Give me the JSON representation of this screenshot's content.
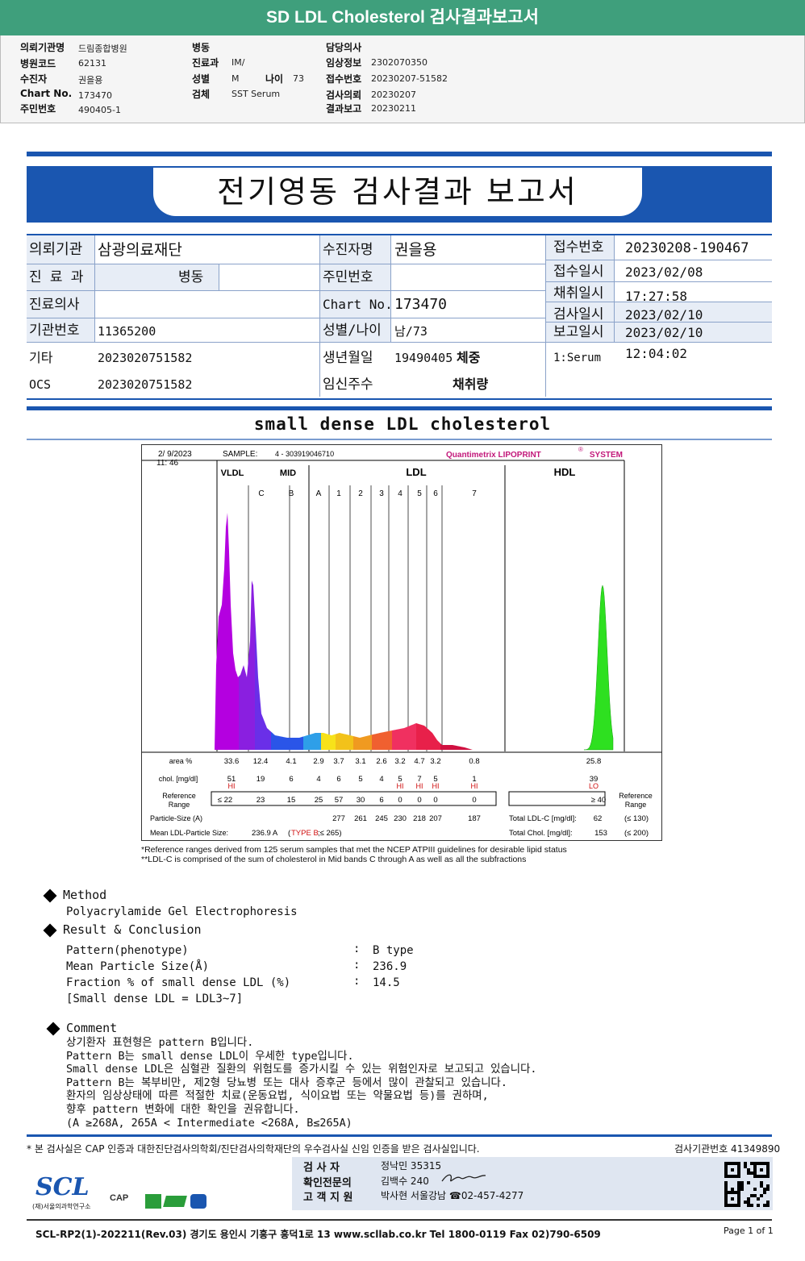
{
  "banner": {
    "title": "SD LDL Cholesterol 검사결과보고서"
  },
  "header": {
    "col1": [
      {
        "k": "의뢰기관명",
        "v": "드림종합병원"
      },
      {
        "k": "병원코드",
        "v": "62131"
      },
      {
        "k": "수진자",
        "v": "권을용"
      },
      {
        "k": "Chart No.",
        "v": "173470"
      },
      {
        "k": "주민번호",
        "v": "490405-1"
      }
    ],
    "col2": [
      {
        "k": "병동",
        "v": ""
      },
      {
        "k": "진료과",
        "v": "IM/"
      },
      {
        "k": "성별",
        "v": "M"
      },
      {
        "k": "검체",
        "v": "SST Serum"
      }
    ],
    "age": {
      "k": "나이",
      "v": "73"
    },
    "col3": [
      {
        "k": "담당의사",
        "v": ""
      },
      {
        "k": "임상정보",
        "v": "2302070350"
      },
      {
        "k": "접수번호",
        "v": "20230207-51582"
      },
      {
        "k": "검사의뢰",
        "v": "20230207"
      },
      {
        "k": "결과보고",
        "v": "20230211"
      }
    ]
  },
  "report": {
    "title": "전기영동 검사결과 보고서"
  },
  "info": {
    "l1": "의뢰기관",
    "v1": "삼광의료재단",
    "l2": "수진자명",
    "v2": "권을용",
    "l3": "접수번호",
    "v3": "20230208-190467",
    "l4": "진 료 과",
    "v4": "병동",
    "l5": "주민번호",
    "v5": "",
    "l6": "접수일시",
    "v6": "2023/02/08 17:27:58",
    "l7": "진료의사",
    "v7": "",
    "l8": "Chart No.",
    "v8": "173470",
    "l9": "채취일시",
    "v9": "",
    "l10": "검사일시",
    "v10": "2023/02/10",
    "l11": "기관번호",
    "v11": "11365200",
    "l12": "성별/나이",
    "v12": "남/73",
    "l13": "보고일시",
    "v13": "2023/02/10 12:04:02",
    "l14": "기타",
    "v14": "2023020751582",
    "l15": "생년월일",
    "v15": "19490405",
    "l15b": "체중",
    "v16": "1:Serum",
    "l17": "OCS",
    "v17": "2023020751582",
    "l18": "임신주수",
    "l18b": "채취량"
  },
  "section": {
    "title": "small dense LDL cholesterol"
  },
  "chart": {
    "date": "2/ 9/2023",
    "time": "11: 46",
    "sample_label": "SAMPLE:",
    "sample": "4 - 303919046710",
    "brand": "Quantimetrix LIPOPRINT",
    "brand_sys": "SYSTEM",
    "brand_mark": "®",
    "groups": [
      "VLDL",
      "MID",
      "LDL",
      "HDL"
    ],
    "subbands": [
      "C",
      "B",
      "A",
      "1",
      "2",
      "3",
      "4",
      "5",
      "6",
      "7"
    ],
    "row_labels": {
      "area": "area %",
      "chol": "chol. [mg/dl]",
      "ref1": "Reference",
      "ref2": "Range",
      "ref_right1": "Reference",
      "ref_right2": "Range",
      "psize": "Particle-Size (A)",
      "mean": "Mean LDL-Particle Size:"
    },
    "area": [
      "33.6",
      "12.4",
      "4.1",
      "2.9",
      "3.7",
      "3.1",
      "2.6",
      "3.2",
      "4.7",
      "3.2",
      "0.8",
      "25.8"
    ],
    "chol": [
      "51",
      "19",
      "6",
      "4",
      "6",
      "5",
      "4",
      "5",
      "7",
      "5",
      "1",
      "39"
    ],
    "flags": [
      "HI",
      "",
      "",
      "",
      "",
      "",
      "",
      "HI",
      "HI",
      "HI",
      "HI",
      "LO"
    ],
    "ref": [
      "≤ 22",
      "23",
      "15",
      "25",
      "57",
      "30",
      "6",
      "0",
      "0",
      "0",
      "0",
      "≥ 40"
    ],
    "psize": [
      "277",
      "261",
      "245",
      "230",
      "218",
      "207",
      "187"
    ],
    "mean_value": "236.9 A",
    "mean_type_pre": "(",
    "mean_type": "TYPE B",
    "mean_type_post": ";≤ 265)",
    "total_ldl_label": "Total LDL-C [mg/dl]:",
    "total_ldl": "62",
    "total_ldl_ref": "(≤ 130)",
    "total_chol_label": "Total Chol. [mg/dl]:",
    "total_chol": "153",
    "total_chol_ref": "(≤ 200)"
  },
  "notes": {
    "n1": "*Reference ranges derived from 125 serum samples that met the NCEP ATPIII guidelines for desirable lipid status",
    "n2": "**LDL-C is comprised of the sum of cholesterol in Mid bands C through A as well as all the subfractions"
  },
  "method": {
    "title": "Method",
    "text": "Polyacrylamide Gel Electrophoresis"
  },
  "result": {
    "title": "Result & Conclusion",
    "rows": [
      {
        "k": "Pattern(phenotype)",
        "v": "B type"
      },
      {
        "k": "Mean Particle Size(Å)",
        "v": "236.9"
      },
      {
        "k": "Fraction % of small dense LDL (%)",
        "v": "14.5"
      }
    ],
    "sep": ":",
    "note": "[Small dense LDL = LDL3~7]"
  },
  "comment": {
    "title": "Comment",
    "lines": [
      "상기환자 표현형은 pattern B입니다.",
      "Pattern B는 small dense LDL이 우세한 type입니다.",
      "Small dense LDL은 심혈관 질환의 위험도를 증가시킬 수 있는 위험인자로 보고되고 있습니다.",
      "Pattern B는 복부비만, 제2형 당뇨병 또는 대사 증후군 등에서 많이 관찰되고 있습니다.",
      "환자의 임상상태에 따른 적절한 치료(운동요법, 식이요법 또는 약물요법 등)를 권하며,",
      "향후 pattern 변화에 대한 확인을 권유합니다.",
      "(A ≥268A, 265A < Intermediate <268A, B≤265A)"
    ]
  },
  "footer": {
    "cert": "* 본 검사실은 CAP 인증과 대한진단검사의학회/진단검사의학재단의 우수검사실 신임 인증을 받은 검사실입니다.",
    "lab_no": "검사기관번호 41349890",
    "examiner_k": "검 사 자",
    "examiner_v": "정낙민 35315",
    "confirm_k": "확인전문의",
    "confirm_v": "김백수 240",
    "support_k": "고 객 지 원",
    "support_v": "박사현 서울강남 ☎02-457-4277",
    "logo": "SCL",
    "logo_sub": "(재)서울의과학연구소",
    "cert_logo": "CAP",
    "form": "SCL-RP2(1)-202211(Rev.03)  경기도 용인시 기흥구 흥덕1로 13  www.scllab.co.kr  Tel 1800-0119  Fax 02)790-6509",
    "page": "Page 1 of 1"
  }
}
